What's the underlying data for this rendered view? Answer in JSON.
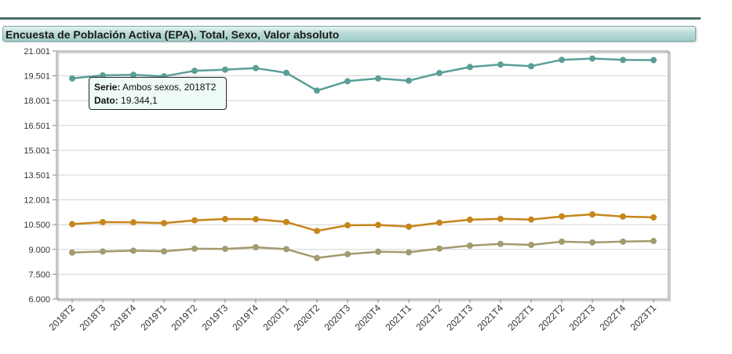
{
  "chart_data": {
    "type": "line",
    "title": "Encuesta de Población Activa (EPA), Total, Sexo, Valor absoluto",
    "categories": [
      "2018T2",
      "2018T3",
      "2018T4",
      "2019T1",
      "2019T2",
      "2019T3",
      "2019T4",
      "2020T1",
      "2020T2",
      "2020T3",
      "2020T4",
      "2021T1",
      "2021T2",
      "2021T3",
      "2021T4",
      "2022T1",
      "2022T2",
      "2022T3",
      "2022T4",
      "2023T1"
    ],
    "y_ticks": [
      "21.001",
      "19.501",
      "18.001",
      "16.501",
      "15.001",
      "13.501",
      "12.001",
      "10.500",
      "9.000",
      "7.500",
      "6.000"
    ],
    "ylim": [
      6000,
      21001
    ],
    "grid": true,
    "series": [
      {
        "name": "Ambos sexos",
        "color": "#5a9e98",
        "values": [
          19344,
          19528,
          19564,
          19471,
          19805,
          19874,
          19966,
          19681,
          18607,
          19176,
          19344,
          19207,
          19671,
          20031,
          20184,
          20084,
          20469,
          20545,
          20463,
          20450
        ]
      },
      {
        "name": "",
        "color": "#c6861a",
        "values": [
          10532,
          10652,
          10640,
          10590,
          10760,
          10840,
          10832,
          10660,
          10120,
          10460,
          10480,
          10380,
          10620,
          10800,
          10850,
          10810,
          11000,
          11120,
          10990,
          10940
        ]
      },
      {
        "name": "",
        "color": "#a39a6e",
        "values": [
          8812,
          8876,
          8924,
          8881,
          9045,
          9034,
          9134,
          9021,
          8487,
          8716,
          8864,
          8827,
          9051,
          9231,
          9334,
          9274,
          9469,
          9425,
          9473,
          9510
        ]
      }
    ]
  },
  "tooltip": {
    "serie_label": "Serie:",
    "serie_value": "Ambos sexos, 2018T2",
    "dato_label": "Dato:",
    "dato_value": "19.344,1"
  }
}
